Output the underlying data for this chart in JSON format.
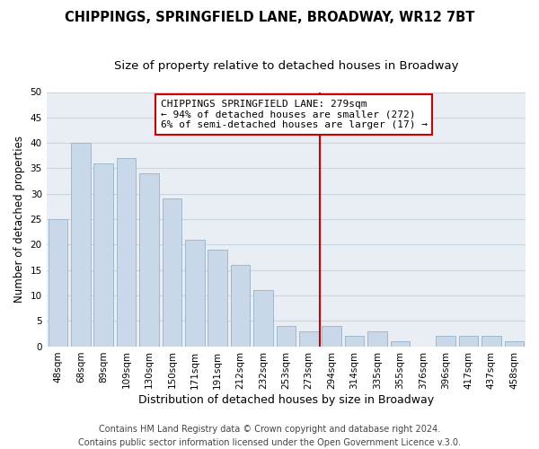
{
  "title": "CHIPPINGS, SPRINGFIELD LANE, BROADWAY, WR12 7BT",
  "subtitle": "Size of property relative to detached houses in Broadway",
  "xlabel": "Distribution of detached houses by size in Broadway",
  "ylabel": "Number of detached properties",
  "categories": [
    "48sqm",
    "68sqm",
    "89sqm",
    "109sqm",
    "130sqm",
    "150sqm",
    "171sqm",
    "191sqm",
    "212sqm",
    "232sqm",
    "253sqm",
    "273sqm",
    "294sqm",
    "314sqm",
    "335sqm",
    "355sqm",
    "376sqm",
    "396sqm",
    "417sqm",
    "437sqm",
    "458sqm"
  ],
  "values": [
    25,
    40,
    36,
    37,
    34,
    29,
    21,
    19,
    16,
    11,
    4,
    3,
    4,
    2,
    3,
    1,
    0,
    2,
    2,
    2,
    1
  ],
  "bar_color": "#c8d8e8",
  "bar_edge_color": "#a0b8cc",
  "vline_x_index": 11.5,
  "vline_color": "#cc0000",
  "annotation_text": "CHIPPINGS SPRINGFIELD LANE: 279sqm\n← 94% of detached houses are smaller (272)\n6% of semi-detached houses are larger (17) →",
  "ylim": [
    0,
    50
  ],
  "yticks": [
    0,
    5,
    10,
    15,
    20,
    25,
    30,
    35,
    40,
    45,
    50
  ],
  "grid_color": "#c8d4e0",
  "background_color": "#ffffff",
  "plot_bg_color": "#e8eef4",
  "title_fontsize": 10.5,
  "subtitle_fontsize": 9.5,
  "xlabel_fontsize": 9,
  "ylabel_fontsize": 8.5,
  "tick_fontsize": 7.5,
  "annotation_fontsize": 8,
  "footer_fontsize": 7,
  "footer_text": "Contains HM Land Registry data © Crown copyright and database right 2024.\nContains public sector information licensed under the Open Government Licence v.3.0."
}
